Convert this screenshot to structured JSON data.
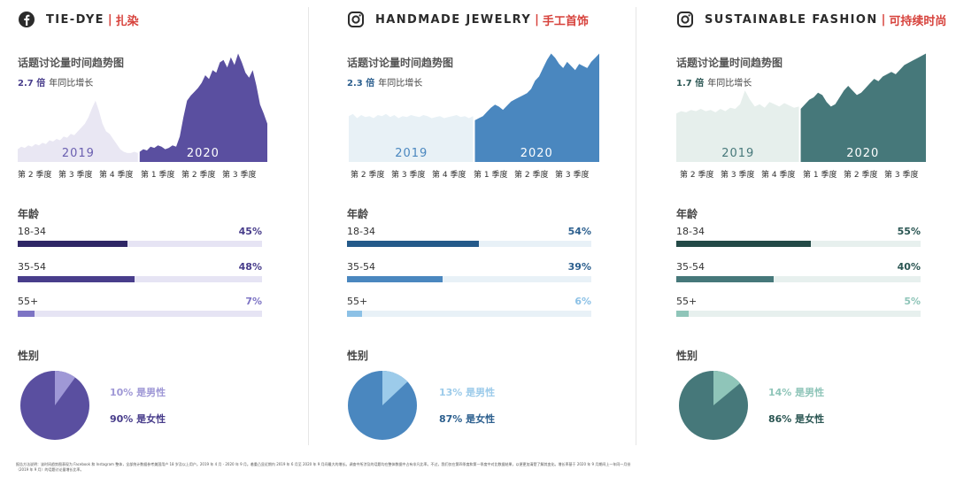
{
  "panels": [
    {
      "platform_icon": "facebook-icon",
      "name": "TIE-DYE",
      "separator": "|",
      "name_cn": "扎染",
      "trend_title": "话题讨论量时间趋势图",
      "growth_value": "2.7 倍",
      "growth_label": "年同比增长",
      "year_left": "2019",
      "year_right": "2020",
      "quarters": [
        "第 2 季度",
        "第 3 季度",
        "第 4 季度",
        "第 1 季度",
        "第 2 季度",
        "第 3 季度"
      ],
      "age_title": "年龄",
      "ages": [
        {
          "label": "18-34",
          "pct_text": "45%",
          "value": 45
        },
        {
          "label": "35-54",
          "pct_text": "48%",
          "value": 48
        },
        {
          "label": "55+",
          "pct_text": "7%",
          "value": 7
        }
      ],
      "gender_title": "性别",
      "male_text": "10% 是男性",
      "female_text": "90% 是女性",
      "male_value": 10,
      "female_value": 90,
      "colors": {
        "dark": "#483d8b",
        "mid": "#5a4fa0",
        "light": "#9f98d6",
        "pale": "#e6e4f4",
        "chart_light": "#e9e7f3",
        "year_left_color": "#6a5fb0",
        "year_right_color": "#ffffff"
      }
    },
    {
      "platform_icon": "instagram-icon",
      "name": "HANDMADE JEWELRY",
      "separator": "|",
      "name_cn": "手工首饰",
      "trend_title": "话题讨论量时间趋势图",
      "growth_value": "2.3 倍",
      "growth_label": "年同比增长",
      "year_left": "2019",
      "year_right": "2020",
      "quarters": [
        "第 2 季度",
        "第 3 季度",
        "第 4 季度",
        "第 1 季度",
        "第 2 季度",
        "第 3 季度"
      ],
      "age_title": "年龄",
      "ages": [
        {
          "label": "18-34",
          "pct_text": "54%",
          "value": 54
        },
        {
          "label": "35-54",
          "pct_text": "39%",
          "value": 39
        },
        {
          "label": "55+",
          "pct_text": "6%",
          "value": 6
        }
      ],
      "gender_title": "性别",
      "male_text": "13% 是男性",
      "female_text": "87% 是女性",
      "male_value": 13,
      "female_value": 87,
      "colors": {
        "dark": "#2c5f8e",
        "mid": "#4a87bf",
        "light": "#9ccbea",
        "pale": "#e8f1f7",
        "chart_light": "#e8f1f6",
        "year_left_color": "#4a87bf",
        "year_right_color": "#ffffff"
      }
    },
    {
      "platform_icon": "instagram-icon",
      "name": "SUSTAINABLE FASHION",
      "separator": "|",
      "name_cn": "可持续时尚",
      "trend_title": "话题讨论量时间趋势图",
      "growth_value": "1.7 倍",
      "growth_label": "年同比增长",
      "year_left": "2019",
      "year_right": "2020",
      "quarters": [
        "第 2 季度",
        "第 3 季度",
        "第 4 季度",
        "第 1 季度",
        "第 2 季度",
        "第 3 季度"
      ],
      "age_title": "年龄",
      "ages": [
        {
          "label": "18-34",
          "pct_text": "55%",
          "value": 55
        },
        {
          "label": "35-54",
          "pct_text": "40%",
          "value": 40
        },
        {
          "label": "55+",
          "pct_text": "5%",
          "value": 5
        }
      ],
      "gender_title": "性别",
      "male_text": "14% 是男性",
      "female_text": "86% 是女性",
      "male_value": 14,
      "female_value": 86,
      "colors": {
        "dark": "#2b5653",
        "mid": "#46787a",
        "light": "#8fc5b9",
        "pale": "#e7f0ee",
        "chart_light": "#e6efec",
        "year_left_color": "#46787a",
        "year_right_color": "#ffffff"
      }
    }
  ],
  "footer_text": "报告方法说明：该时间趋势图表现为 Facebook 和 Instagram 整体，全部统计数据参考美国用户 18 岁及以上用户。2019 年 4 月 - 2020 年 9 月。着重凸显近期内 2019 年 6 月至 2020 年 9 月间最大的增长。调查中所涉及的话题均在整体数据中占有非凡比率。不过，我们仅在第四季度和第一季度中对比数据结果，以便更加清楚了解其变化。增长率基于 2020 年 9 月期间上一年同一月份（2019 年 9 月）的话题讨论量增长比率。",
  "chart_data": [
    {
      "type": "area",
      "title": "话题讨论量时间趋势图",
      "x_labels": [
        "第 2 季度",
        "第 3 季度",
        "第 4 季度",
        "第 1 季度",
        "第 2 季度",
        "第 3 季度"
      ],
      "series": [
        {
          "name": "2019",
          "values": [
            10,
            12,
            11,
            13,
            12,
            14,
            13,
            15,
            14,
            17,
            16,
            18,
            17,
            20,
            19,
            22,
            21,
            24,
            27,
            30,
            35,
            42,
            48,
            40,
            30,
            24,
            22,
            18,
            14,
            10,
            8,
            7,
            7,
            8,
            7
          ]
        },
        {
          "name": "2020",
          "values": [
            8,
            10,
            9,
            12,
            11,
            13,
            12,
            10,
            11,
            13,
            12,
            20,
            35,
            48,
            52,
            55,
            58,
            62,
            68,
            65,
            72,
            70,
            78,
            80,
            74,
            82,
            76,
            85,
            78,
            70,
            66,
            72,
            60,
            45,
            38,
            30
          ]
        }
      ]
    },
    {
      "type": "area",
      "title": "话题讨论量时间趋势图",
      "x_labels": [
        "第 2 季度",
        "第 3 季度",
        "第 4 季度",
        "第 1 季度",
        "第 2 季度",
        "第 3 季度"
      ],
      "series": [
        {
          "name": "2019",
          "values": [
            44,
            46,
            42,
            45,
            43,
            44,
            42,
            45,
            44,
            46,
            43,
            45,
            42,
            44,
            43,
            45,
            44,
            43,
            45,
            44,
            42,
            43,
            44,
            42,
            43,
            44,
            45,
            43,
            44,
            42,
            44
          ]
        },
        {
          "name": "2020",
          "values": [
            40,
            42,
            44,
            48,
            52,
            55,
            53,
            50,
            54,
            58,
            60,
            62,
            64,
            66,
            70,
            78,
            82,
            90,
            98,
            104,
            100,
            94,
            90,
            96,
            92,
            88,
            94,
            92,
            90,
            96,
            100,
            104
          ]
        }
      ]
    },
    {
      "type": "area",
      "title": "话题讨论量时间趋势图",
      "x_labels": [
        "第 2 季度",
        "第 3 季度",
        "第 4 季度",
        "第 1 季度",
        "第 2 季度",
        "第 3 季度"
      ],
      "series": [
        {
          "name": "2019",
          "values": [
            42,
            44,
            43,
            45,
            44,
            46,
            44,
            45,
            43,
            46,
            44,
            47,
            46,
            50,
            62,
            54,
            48,
            50,
            47,
            52,
            50,
            48,
            51,
            49,
            47,
            48
          ]
        },
        {
          "name": "2020",
          "values": [
            46,
            50,
            54,
            56,
            60,
            58,
            52,
            48,
            50,
            56,
            62,
            66,
            62,
            58,
            60,
            64,
            68,
            72,
            70,
            74,
            76,
            78,
            76,
            80,
            84,
            86,
            88,
            90,
            92,
            94
          ]
        }
      ]
    }
  ]
}
